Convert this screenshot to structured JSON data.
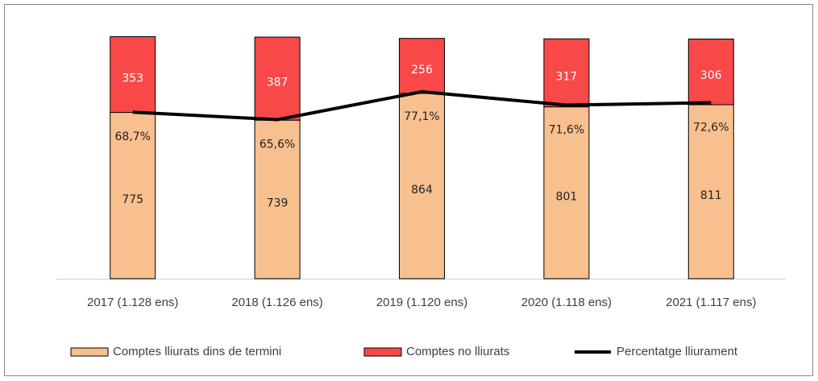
{
  "chart_data": {
    "type": "stacked-bar-line",
    "categories": [
      "2017 (1.128 ens)",
      "2018 (1.126 ens)",
      "2019 (1.120 ens)",
      "2020 (1.118 ens)",
      "2021 (1.117 ens)"
    ],
    "series": [
      {
        "name": "Comptes lliurats dins de termini",
        "color": "#f8c08f",
        "values": [
          775,
          739,
          864,
          801,
          811
        ]
      },
      {
        "name": "Comptes no lliurats",
        "color": "#f84848",
        "values": [
          353,
          387,
          256,
          317,
          306
        ]
      },
      {
        "name": "Percentatge lliurament",
        "color": "#000000",
        "axis": "y2",
        "values": [
          68.7,
          65.6,
          77.1,
          71.6,
          72.6
        ],
        "value_labels": [
          "68,7%",
          "65,6%",
          "77,1%",
          "71,6%",
          "72,6%"
        ]
      }
    ],
    "ylim": [
      0,
      1130
    ],
    "y2lim": [
      0,
      100
    ],
    "legend": "bottom"
  }
}
